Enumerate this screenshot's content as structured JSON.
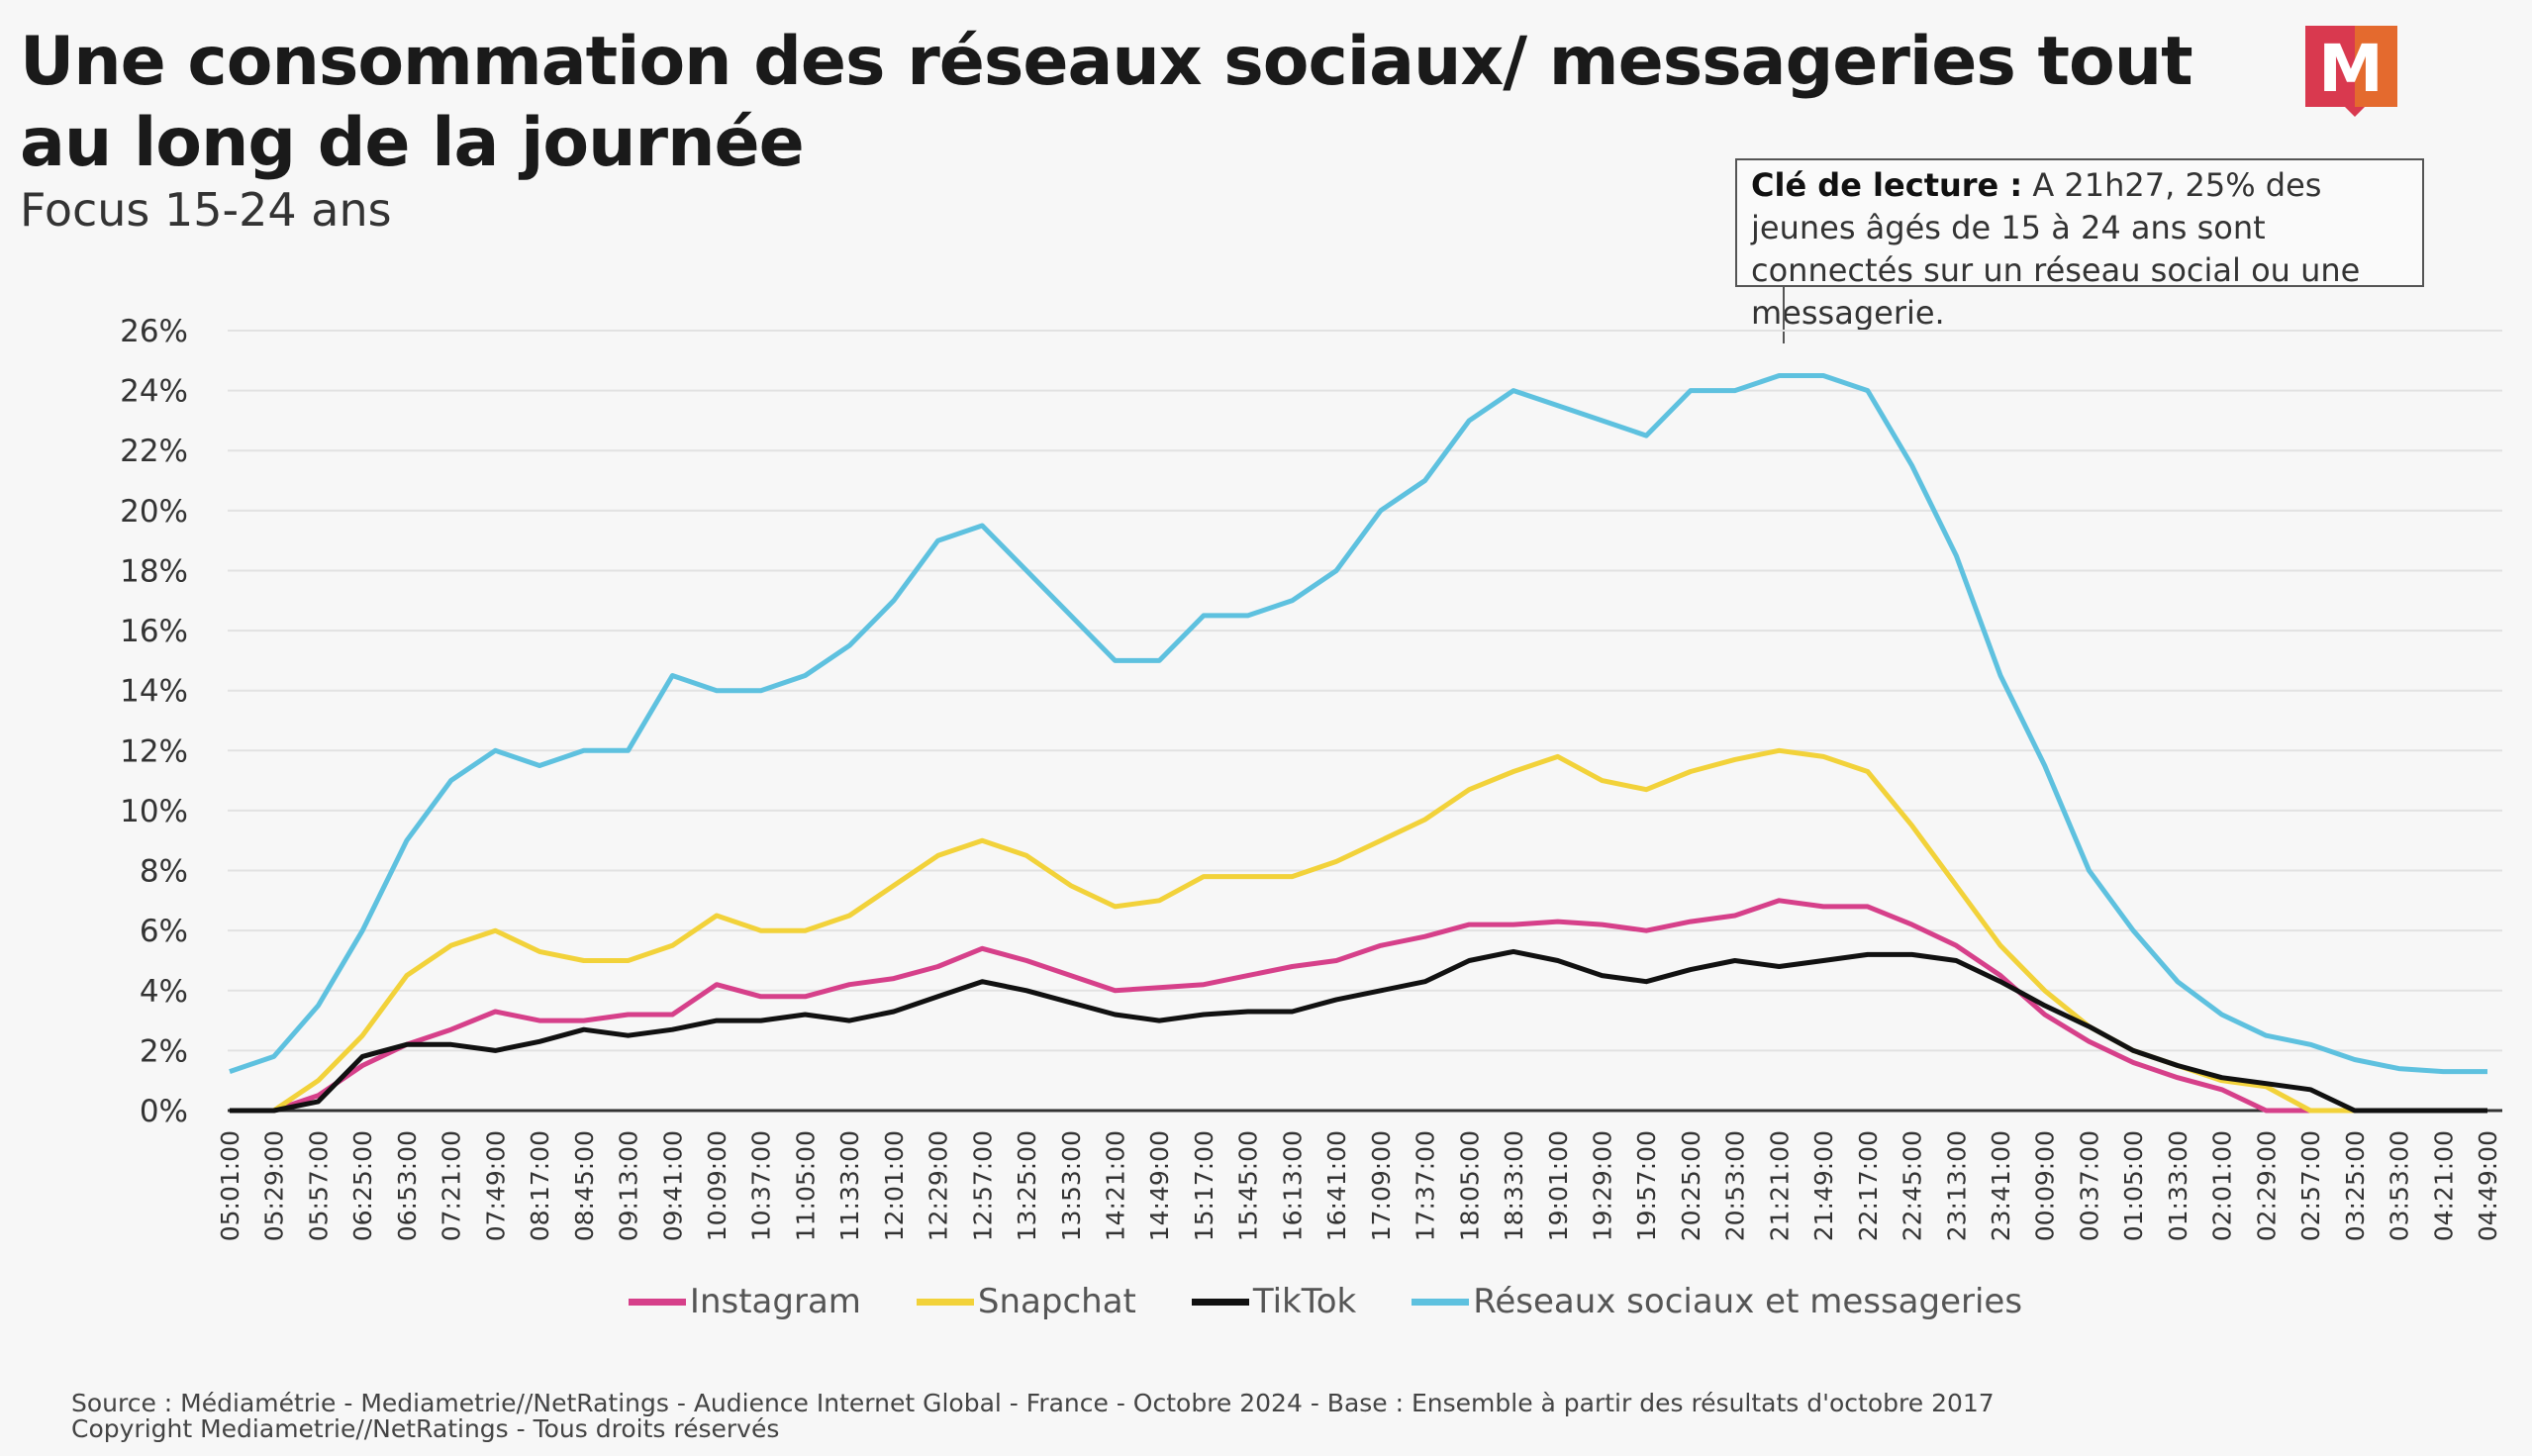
{
  "header": {
    "title": "Une consommation des réseaux sociaux/ messageries tout au long de la journée",
    "subtitle": "Focus 15-24 ans",
    "logo_text": "M"
  },
  "callout": {
    "label": "Clé de lecture :",
    "text": " A 21h27, 25% des jeunes âgés de 15 à 24 ans sont connectés sur un réseau social ou une messagerie."
  },
  "footer": {
    "source": "Source : Médiamétrie - Mediametrie//NetRatings - Audience Internet Global - France - Octobre 2024 - Base : Ensemble à partir des résultats d'octobre 2017",
    "copyright": "Copyright Mediametrie//NetRatings - Tous droits réservés"
  },
  "chart_data": {
    "type": "line",
    "title": "",
    "xlabel": "",
    "ylabel": "",
    "ylim": [
      0,
      26
    ],
    "yticks": [
      "0%",
      "2%",
      "4%",
      "6%",
      "8%",
      "10%",
      "12%",
      "14%",
      "16%",
      "18%",
      "20%",
      "22%",
      "24%",
      "26%"
    ],
    "grid": "horizontal",
    "legend_position": "bottom",
    "x": [
      "05:01:00",
      "05:29:00",
      "05:57:00",
      "06:25:00",
      "06:53:00",
      "07:21:00",
      "07:49:00",
      "08:17:00",
      "08:45:00",
      "09:13:00",
      "09:41:00",
      "10:09:00",
      "10:37:00",
      "11:05:00",
      "11:33:00",
      "12:01:00",
      "12:29:00",
      "12:57:00",
      "13:25:00",
      "13:53:00",
      "14:21:00",
      "14:49:00",
      "15:17:00",
      "15:45:00",
      "16:13:00",
      "16:41:00",
      "17:09:00",
      "17:37:00",
      "18:05:00",
      "18:33:00",
      "19:01:00",
      "19:29:00",
      "19:57:00",
      "20:25:00",
      "20:53:00",
      "21:21:00",
      "21:49:00",
      "22:17:00",
      "22:45:00",
      "23:13:00",
      "23:41:00",
      "00:09:00",
      "00:37:00",
      "01:05:00",
      "01:33:00",
      "02:01:00",
      "02:29:00",
      "02:57:00",
      "03:25:00",
      "03:53:00",
      "04:21:00",
      "04:49:00"
    ],
    "series": [
      {
        "name": "Instagram",
        "color": "#d6408a",
        "values": [
          0,
          0,
          0.5,
          1.5,
          2.2,
          2.7,
          3.3,
          3,
          3,
          3.2,
          3.2,
          4.2,
          3.8,
          3.8,
          4.2,
          4.4,
          4.8,
          5.4,
          5,
          4.5,
          4,
          4.1,
          4.2,
          4.5,
          4.8,
          5,
          5.5,
          5.8,
          6.2,
          6.2,
          6.3,
          6.2,
          6,
          6.3,
          6.5,
          7,
          6.8,
          6.8,
          6.2,
          5.5,
          4.5,
          3.2,
          2.3,
          1.6,
          1.1,
          0.7,
          0,
          0,
          0,
          0,
          0,
          0
        ]
      },
      {
        "name": "Snapchat",
        "color": "#f2d23a",
        "values": [
          0,
          0,
          1,
          2.5,
          4.5,
          5.5,
          6,
          5.3,
          5,
          5,
          5.5,
          6.5,
          6,
          6,
          6.5,
          7.5,
          8.5,
          9,
          8.5,
          7.5,
          6.8,
          7,
          7.8,
          7.8,
          7.8,
          8.3,
          9,
          9.7,
          10.7,
          11.3,
          11.8,
          11,
          10.7,
          11.3,
          11.7,
          12,
          11.8,
          11.3,
          9.5,
          7.5,
          5.5,
          4,
          2.8,
          2,
          1.5,
          1,
          0.8,
          0,
          0,
          0,
          0,
          0
        ]
      },
      {
        "name": "TikTok",
        "color": "#111111",
        "values": [
          0,
          0,
          0.3,
          1.8,
          2.2,
          2.2,
          2,
          2.3,
          2.7,
          2.5,
          2.7,
          3,
          3,
          3.2,
          3,
          3.3,
          3.8,
          4.3,
          4,
          3.6,
          3.2,
          3,
          3.2,
          3.3,
          3.3,
          3.7,
          4,
          4.3,
          5,
          5.3,
          5,
          4.5,
          4.3,
          4.7,
          5,
          4.8,
          5,
          5.2,
          5.2,
          5,
          4.3,
          3.5,
          2.8,
          2,
          1.5,
          1.1,
          0.9,
          0.7,
          0,
          0,
          0,
          0
        ]
      },
      {
        "name": "Réseaux sociaux et messageries",
        "color": "#5ec1df",
        "values": [
          1.3,
          1.8,
          3.5,
          6,
          9,
          11,
          12,
          11.5,
          12,
          12,
          14.5,
          14,
          14,
          14.5,
          15.5,
          17,
          19,
          19.5,
          18,
          16.5,
          15,
          15,
          16.5,
          16.5,
          17,
          18,
          20,
          21,
          23,
          24,
          23.5,
          23,
          22.5,
          24,
          24,
          24.5,
          24.5,
          24,
          21.5,
          18.5,
          14.5,
          11.5,
          8,
          6,
          4.3,
          3.2,
          2.5,
          2.2,
          1.7,
          1.4,
          1.3,
          1.3
        ]
      }
    ]
  }
}
